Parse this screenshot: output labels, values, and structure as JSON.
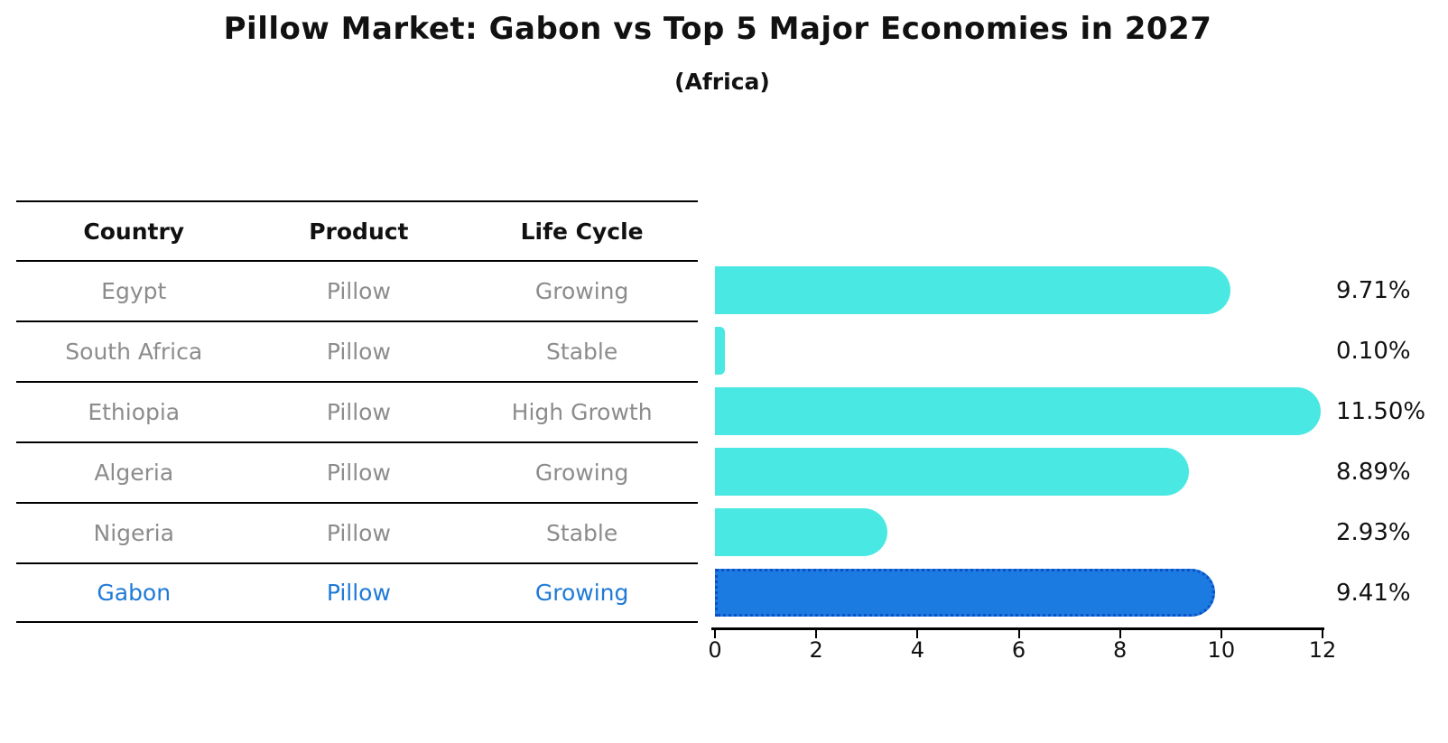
{
  "title": "Pillow Market: Gabon vs Top 5 Major Economies in 2027",
  "subtitle": "(Africa)",
  "table": {
    "headers": [
      "Country",
      "Product",
      "Life Cycle"
    ],
    "rows": [
      {
        "country": "Egypt",
        "product": "Pillow",
        "life_cycle": "Growing",
        "highlighted": false
      },
      {
        "country": "South Africa",
        "product": "Pillow",
        "life_cycle": "Stable",
        "highlighted": false
      },
      {
        "country": "Ethiopia",
        "product": "Pillow",
        "life_cycle": "High Growth",
        "highlighted": false
      },
      {
        "country": "Algeria",
        "product": "Pillow",
        "life_cycle": "Growing",
        "highlighted": false
      },
      {
        "country": "Nigeria",
        "product": "Pillow",
        "life_cycle": "Stable",
        "highlighted": false
      },
      {
        "country": "Gabon",
        "product": "Pillow",
        "life_cycle": "Growing",
        "highlighted": true
      }
    ]
  },
  "chart_data": {
    "type": "bar",
    "orientation": "horizontal",
    "title": "Pillow Market: Gabon vs Top 5 Major Economies in 2027",
    "subtitle": "(Africa)",
    "categories": [
      "Egypt",
      "South Africa",
      "Ethiopia",
      "Algeria",
      "Nigeria",
      "Gabon"
    ],
    "values": [
      9.71,
      0.1,
      11.5,
      8.89,
      2.93,
      9.41
    ],
    "value_labels": [
      "9.71%",
      "0.10%",
      "11.50%",
      "8.89%",
      "2.93%",
      "9.41%"
    ],
    "xlim": [
      0,
      12
    ],
    "x_ticks": [
      0,
      2,
      4,
      6,
      8,
      10,
      12
    ],
    "highlight_index": 5,
    "grid": false,
    "legend": false,
    "colors": {
      "bar_fill": "#49E8E2",
      "highlight_fill": "#1B7BE0",
      "highlight_border": "#0D4FC8",
      "table_text": "#8C8C8C",
      "highlight_text": "#1E7AD6",
      "axis_text": "#111111"
    }
  }
}
